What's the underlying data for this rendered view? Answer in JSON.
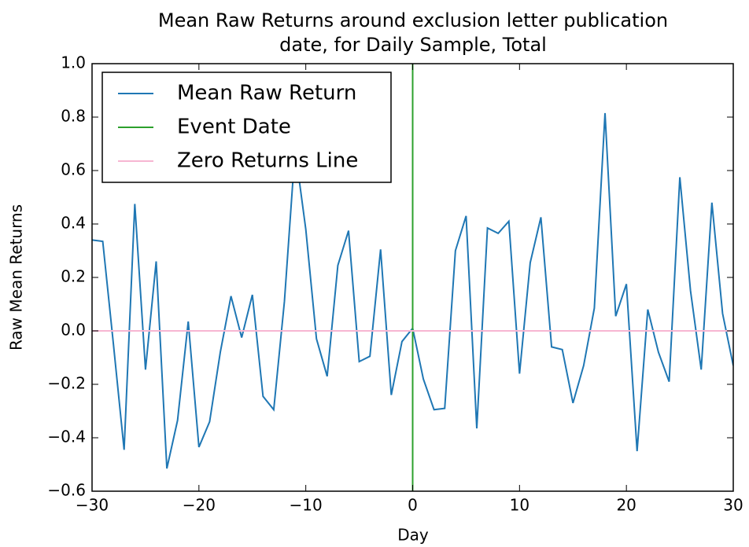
{
  "chart_data": {
    "type": "line",
    "title": [
      "Mean Raw Returns around exclusion letter publication",
      "date, for Daily Sample, Total"
    ],
    "x_label": "Day",
    "y_label": "Raw Mean Returns",
    "series": [
      {
        "name": "Mean Raw Return",
        "color": "#1f77b4",
        "x": [
          -30,
          -29,
          -28,
          -27,
          -26,
          -25,
          -24,
          -23,
          -22,
          -21,
          -20,
          -19,
          -18,
          -17,
          -16,
          -15,
          -14,
          -13,
          -12,
          -11,
          -10,
          -9,
          -8,
          -7,
          -6,
          -5,
          -4,
          -3,
          -2,
          -1,
          0,
          1,
          2,
          3,
          4,
          5,
          6,
          7,
          8,
          9,
          10,
          11,
          12,
          13,
          14,
          15,
          16,
          17,
          18,
          19,
          20,
          21,
          22,
          23,
          24,
          25,
          26,
          27,
          28,
          29,
          30
        ],
        "values": [
          0.34,
          0.335,
          -0.05,
          -0.445,
          0.475,
          -0.145,
          0.26,
          -0.515,
          -0.335,
          0.035,
          -0.435,
          -0.34,
          -0.08,
          0.13,
          -0.025,
          0.135,
          -0.245,
          -0.295,
          0.11,
          0.68,
          0.38,
          -0.03,
          -0.17,
          0.245,
          0.375,
          -0.115,
          -0.095,
          0.305,
          -0.24,
          -0.04,
          0.01,
          -0.18,
          -0.295,
          -0.29,
          0.3,
          0.43,
          -0.365,
          0.385,
          0.365,
          0.41,
          -0.16,
          0.255,
          0.425,
          -0.06,
          -0.07,
          -0.27,
          -0.13,
          0.085,
          0.815,
          0.055,
          0.175,
          -0.45,
          0.08,
          -0.08,
          -0.19,
          0.575,
          0.15,
          -0.145,
          0.48,
          0.065,
          -0.13
        ]
      },
      {
        "name": "Event Date",
        "color": "#2ca02c",
        "x": [
          0,
          0
        ],
        "values": [
          -0.6,
          1.0
        ]
      },
      {
        "name": "Zero Returns Line",
        "color": "#f7b6d2",
        "x": [
          -30,
          30
        ],
        "values": [
          0,
          0
        ]
      }
    ],
    "xlim": [
      -30,
      30
    ],
    "xticks": [
      {
        "value": -30,
        "label": "−30"
      },
      {
        "value": -20,
        "label": "−20"
      },
      {
        "value": -10,
        "label": "−10"
      },
      0,
      10,
      20,
      30
    ],
    "ylim": [
      -0.6,
      1.0
    ],
    "yticks": [
      {
        "value": -0.6,
        "label": "−0.6"
      },
      {
        "value": -0.4,
        "label": "−0.4"
      },
      {
        "value": -0.2,
        "label": "−0.2"
      },
      {
        "value": 0,
        "label": "0.0"
      },
      0.2,
      0.4,
      0.6,
      0.8,
      {
        "value": 1.0,
        "label": "1.0"
      }
    ],
    "grid": false,
    "legend": "upper left"
  }
}
